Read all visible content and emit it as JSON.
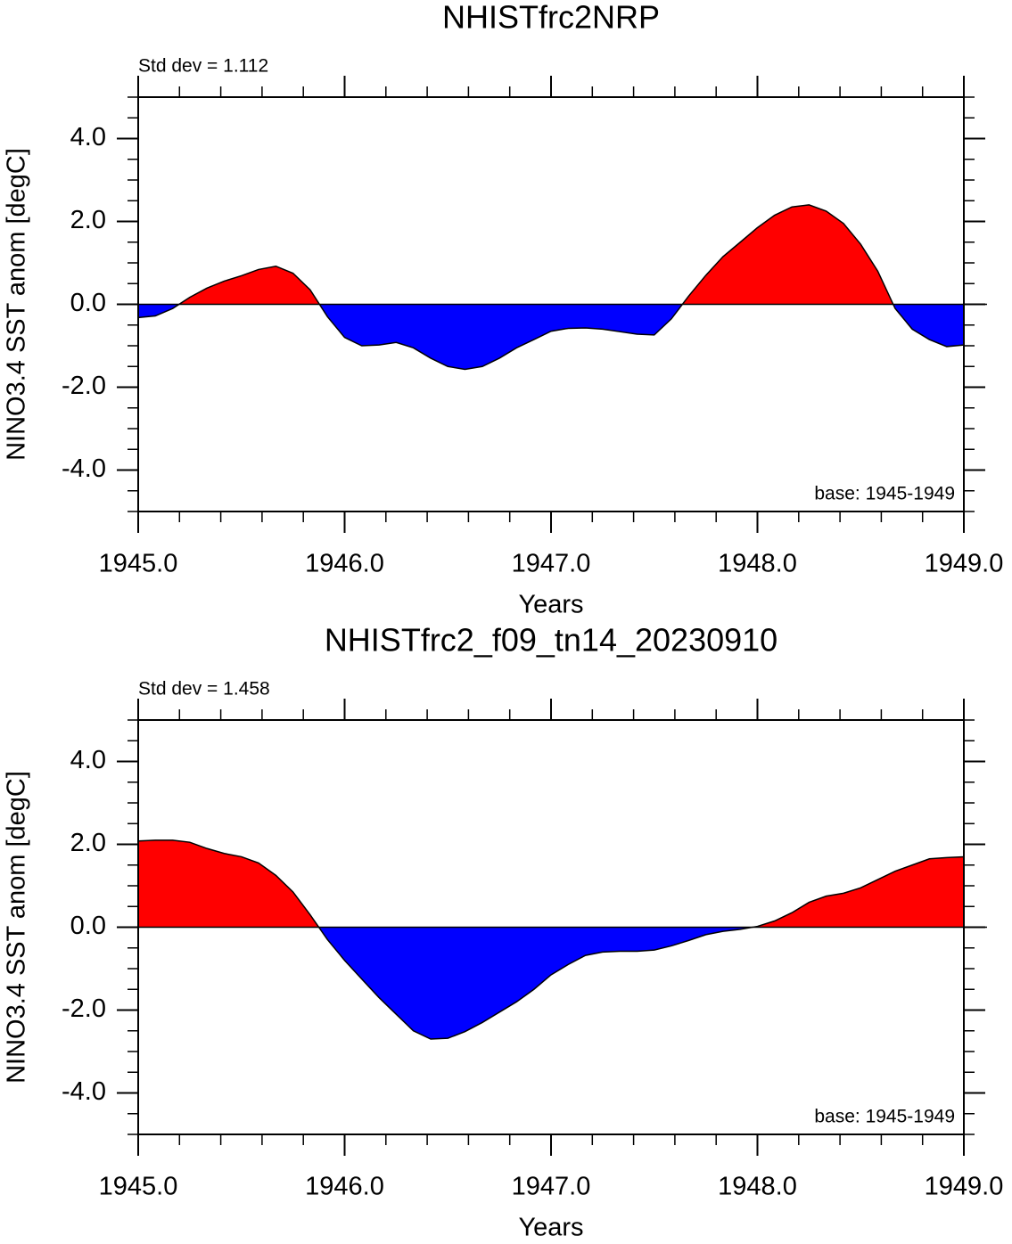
{
  "chart_data": [
    {
      "type": "area",
      "title": "NHISTfrc2NRP",
      "annotation_left": "Std dev = 1.112",
      "annotation_right": "base: 1945-1949",
      "x_label": "Years",
      "y_label": "NINO3.4 SST anom [degC]",
      "x": [
        1945,
        1945.083,
        1945.167,
        1945.25,
        1945.333,
        1945.417,
        1945.5,
        1945.583,
        1945.667,
        1945.75,
        1945.833,
        1945.917,
        1946,
        1946.083,
        1946.167,
        1946.25,
        1946.333,
        1946.417,
        1946.5,
        1946.583,
        1946.667,
        1946.75,
        1946.833,
        1946.917,
        1947,
        1947.083,
        1947.167,
        1947.25,
        1947.333,
        1947.417,
        1947.5,
        1947.583,
        1947.667,
        1947.75,
        1947.833,
        1947.917,
        1948,
        1948.083,
        1948.167,
        1948.25,
        1948.333,
        1948.417,
        1948.5,
        1948.583,
        1948.667,
        1948.75,
        1948.833,
        1948.917,
        1949
      ],
      "values": [
        -0.32,
        -0.28,
        -0.1,
        0.17,
        0.39,
        0.56,
        0.69,
        0.84,
        0.92,
        0.75,
        0.35,
        -0.3,
        -0.8,
        -1.0,
        -0.98,
        -0.92,
        -1.05,
        -1.3,
        -1.5,
        -1.57,
        -1.5,
        -1.3,
        -1.05,
        -0.85,
        -0.65,
        -0.58,
        -0.57,
        -0.6,
        -0.66,
        -0.72,
        -0.74,
        -0.35,
        0.2,
        0.7,
        1.15,
        1.5,
        1.85,
        2.15,
        2.35,
        2.4,
        2.25,
        1.95,
        1.45,
        0.8,
        -0.1,
        -0.6,
        -0.85,
        -1.02,
        -0.98
      ],
      "positive_color": "#ff0000",
      "negative_color": "#0000ff",
      "line_color": "#000000",
      "xlim": [
        1945,
        1949
      ],
      "xticks": [
        {
          "value": 1945,
          "label": "1945.0"
        },
        {
          "value": 1946,
          "label": "1946.0"
        },
        {
          "value": 1947,
          "label": "1947.0"
        },
        {
          "value": 1948,
          "label": "1948.0"
        },
        {
          "value": 1949,
          "label": "1949.0"
        }
      ],
      "xminorticks": [
        1945.2,
        1945.4,
        1945.6,
        1945.8,
        1946.2,
        1946.4,
        1946.6,
        1946.8,
        1947.2,
        1947.4,
        1947.6,
        1947.8,
        1948.2,
        1948.4,
        1948.6,
        1948.8
      ],
      "ylim": [
        -5,
        5
      ],
      "yticks": [
        {
          "value": -4,
          "label": "-4.0"
        },
        {
          "value": -2,
          "label": "-2.0"
        },
        {
          "value": 0,
          "label": "0.0"
        },
        {
          "value": 2,
          "label": "2.0"
        },
        {
          "value": 4,
          "label": "4.0"
        }
      ],
      "yminorticks": [
        -5,
        -4.5,
        -3.5,
        -3,
        -2.5,
        -1.5,
        -1,
        -0.5,
        0.5,
        1,
        1.5,
        2.5,
        3,
        3.5,
        4.5,
        5
      ]
    },
    {
      "type": "area",
      "title": "NHISTfrc2_f09_tn14_20230910",
      "annotation_left": "Std dev = 1.458",
      "annotation_right": "base: 1945-1949",
      "x_label": "Years",
      "y_label": "NINO3.4 SST anom [degC]",
      "x": [
        1945,
        1945.083,
        1945.167,
        1945.25,
        1945.333,
        1945.417,
        1945.5,
        1945.583,
        1945.667,
        1945.75,
        1945.833,
        1945.917,
        1946,
        1946.083,
        1946.167,
        1946.25,
        1946.333,
        1946.417,
        1946.5,
        1946.583,
        1946.667,
        1946.75,
        1946.833,
        1946.917,
        1947,
        1947.083,
        1947.167,
        1947.25,
        1947.333,
        1947.417,
        1947.5,
        1947.583,
        1947.667,
        1947.75,
        1947.833,
        1947.917,
        1948,
        1948.083,
        1948.167,
        1948.25,
        1948.333,
        1948.417,
        1948.5,
        1948.583,
        1948.667,
        1948.75,
        1948.833,
        1948.917,
        1949
      ],
      "values": [
        2.08,
        2.1,
        2.1,
        2.05,
        1.9,
        1.78,
        1.7,
        1.55,
        1.25,
        0.85,
        0.3,
        -0.3,
        -0.8,
        -1.25,
        -1.7,
        -2.1,
        -2.5,
        -2.7,
        -2.68,
        -2.52,
        -2.3,
        -2.05,
        -1.8,
        -1.5,
        -1.15,
        -0.9,
        -0.68,
        -0.6,
        -0.58,
        -0.58,
        -0.55,
        -0.45,
        -0.32,
        -0.18,
        -0.1,
        -0.05,
        0.02,
        0.15,
        0.35,
        0.6,
        0.75,
        0.82,
        0.95,
        1.15,
        1.35,
        1.5,
        1.65,
        1.68,
        1.7
      ],
      "positive_color": "#ff0000",
      "negative_color": "#0000ff",
      "line_color": "#000000",
      "xlim": [
        1945,
        1949
      ],
      "xticks": [
        {
          "value": 1945,
          "label": "1945.0"
        },
        {
          "value": 1946,
          "label": "1946.0"
        },
        {
          "value": 1947,
          "label": "1947.0"
        },
        {
          "value": 1948,
          "label": "1948.0"
        },
        {
          "value": 1949,
          "label": "1949.0"
        }
      ],
      "xminorticks": [
        1945.2,
        1945.4,
        1945.6,
        1945.8,
        1946.2,
        1946.4,
        1946.6,
        1946.8,
        1947.2,
        1947.4,
        1947.6,
        1947.8,
        1948.2,
        1948.4,
        1948.6,
        1948.8
      ],
      "ylim": [
        -5,
        5
      ],
      "yticks": [
        {
          "value": -4,
          "label": "-4.0"
        },
        {
          "value": -2,
          "label": "-2.0"
        },
        {
          "value": 0,
          "label": "0.0"
        },
        {
          "value": 2,
          "label": "2.0"
        },
        {
          "value": 4,
          "label": "4.0"
        }
      ],
      "yminorticks": [
        -5,
        -4.5,
        -3.5,
        -3,
        -2.5,
        -1.5,
        -1,
        -0.5,
        0.5,
        1,
        1.5,
        2.5,
        3,
        3.5,
        4.5,
        5
      ]
    }
  ]
}
